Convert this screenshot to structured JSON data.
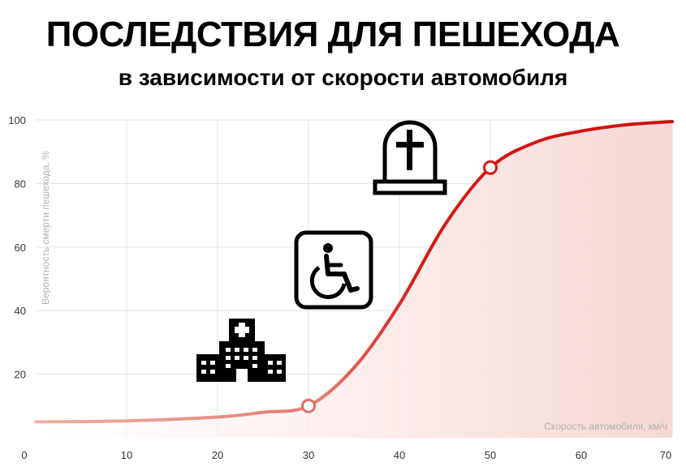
{
  "title": "ПОСЛЕДСТВИЯ ДЛЯ ПЕШЕХОДА",
  "subtitle": "в зависимости от скорости автомобиля",
  "chart_data": {
    "type": "area",
    "xlabel": "Скорость автомобиля, км/ч",
    "ylabel": "Вероятность смерти пешехода, %",
    "xlim": [
      0,
      70
    ],
    "ylim": [
      0,
      100
    ],
    "x_ticks": [
      "0",
      "10",
      "20",
      "30",
      "40",
      "50",
      "60",
      "70"
    ],
    "y_ticks": [
      "20",
      "40",
      "60",
      "80",
      "100"
    ],
    "grid": true,
    "series": [
      {
        "x": [
          0,
          10,
          20,
          25,
          30,
          35,
          40,
          45,
          50,
          55,
          60,
          65,
          70
        ],
        "values": [
          5,
          5.3,
          6.5,
          8,
          10,
          22,
          42,
          67,
          85,
          93,
          96.5,
          98.5,
          99.5
        ]
      }
    ],
    "highlight_points": [
      {
        "x": 30,
        "y": 10
      },
      {
        "x": 50,
        "y": 85
      }
    ],
    "colors": {
      "line": "#d61a14",
      "line_light": "#ef9e98",
      "fill": "#f9e0de"
    }
  },
  "annotations": [
    {
      "icon": "hospital-icon"
    },
    {
      "icon": "wheelchair-icon"
    },
    {
      "icon": "tombstone-icon"
    }
  ]
}
